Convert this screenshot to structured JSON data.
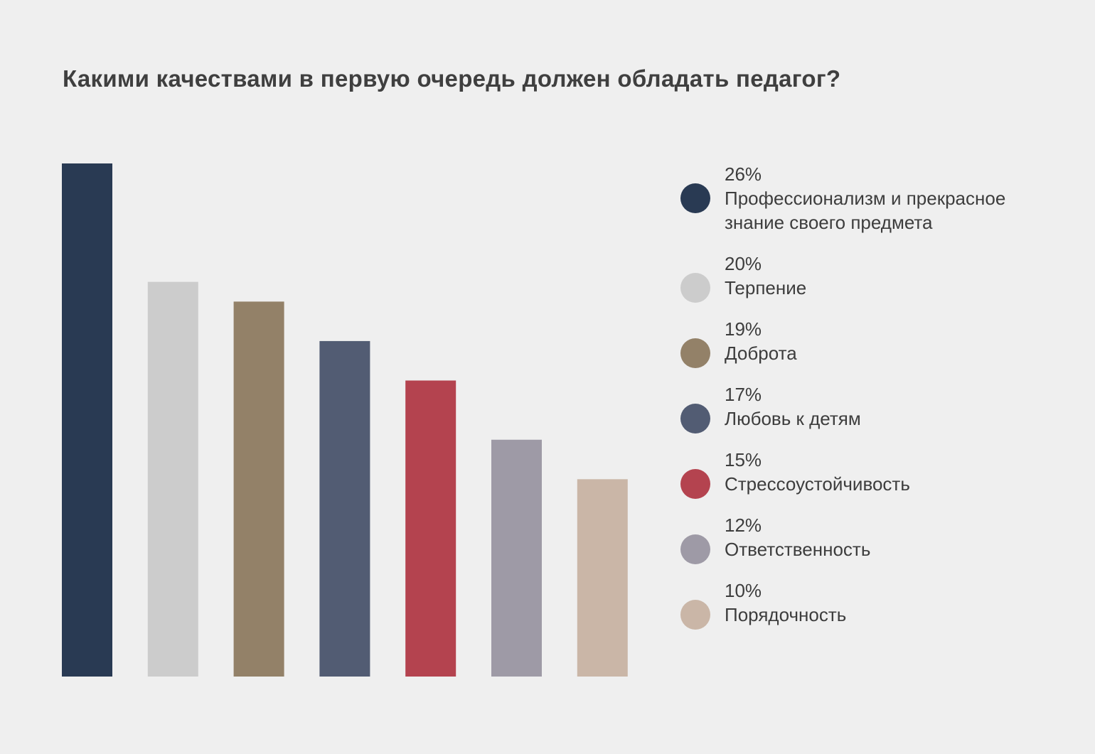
{
  "chart_data": {
    "type": "bar",
    "title": "Какими качествами в первую очередь должен обладать педагог?",
    "xlabel": "",
    "ylabel": "",
    "ylim": [
      0,
      26
    ],
    "grid": false,
    "legend_placement": "right",
    "categories": [
      "Профессионализм и прекрасное знание своего предмета",
      "Терпение",
      "Доброта",
      "Любовь к детям",
      "Стрессоустойчивость",
      "Ответственность",
      "Порядочность"
    ],
    "values": [
      26,
      20,
      19,
      17,
      15,
      12,
      10
    ],
    "value_labels": [
      "26%",
      "20%",
      "19%",
      "17%",
      "15%",
      "12%",
      "10%"
    ],
    "colors": [
      "#293a53",
      "#cccccc",
      "#938168",
      "#525c73",
      "#b4434f",
      "#9e9aa6",
      "#cab6a7"
    ]
  }
}
